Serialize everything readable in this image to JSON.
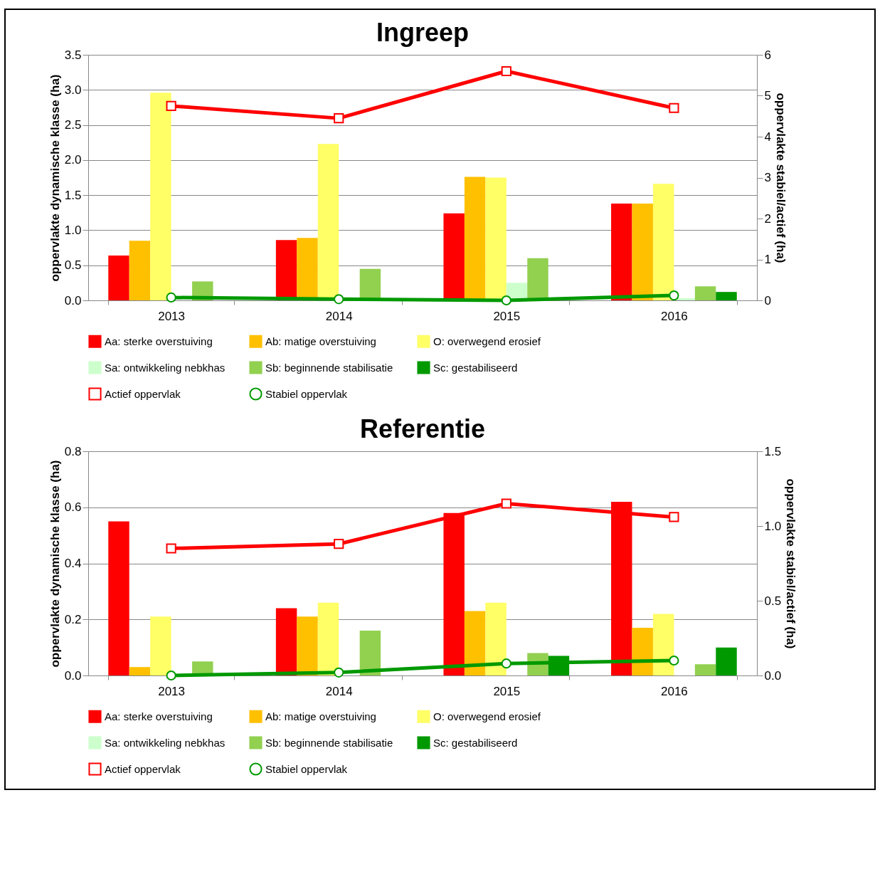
{
  "chart_data": [
    {
      "type": "bar",
      "title": "Ingreep",
      "ylabel": "oppervlakte dynamische klasse (ha)",
      "y2label": "oppervlakte stabiel/actief (ha)",
      "categories": [
        "2013",
        "2014",
        "2015",
        "2016"
      ],
      "ylim": [
        0,
        3.5
      ],
      "yticks": [
        {
          "value": 0,
          "label": "0.0"
        },
        0.5,
        {
          "value": 1,
          "label": "1.0"
        },
        1.5,
        {
          "value": 2,
          "label": "2.0"
        },
        2.5,
        {
          "value": 3,
          "label": "3.0"
        },
        3.5
      ],
      "y2lim": [
        0,
        6
      ],
      "y2ticks": [
        0,
        1,
        2,
        3,
        4,
        5,
        6
      ],
      "grid": "y",
      "legend": "bottom",
      "series": [
        {
          "name": "Aa: sterke overstuiving",
          "color": "#ff0000",
          "values": [
            0.64,
            0.86,
            1.24,
            1.38
          ]
        },
        {
          "name": "Ab: matige overstuiving",
          "color": "#ffc000",
          "values": [
            0.85,
            0.89,
            1.76,
            1.38
          ]
        },
        {
          "name": "O: overwegend erosief",
          "color": "#ffff66",
          "values": [
            2.96,
            2.23,
            1.75,
            1.66
          ]
        },
        {
          "name": "Sa: ontwikkeling nebkhas",
          "color": "#ccffcc",
          "values": [
            0,
            0,
            0.25,
            0.03
          ]
        },
        {
          "name": "Sb: beginnende stabilisatie",
          "color": "#92d050",
          "values": [
            0.27,
            0.45,
            0.6,
            0.2
          ]
        },
        {
          "name": "Sc: gestabiliseerd",
          "color": "#009900",
          "values": [
            0,
            0,
            0,
            0.12
          ]
        },
        {
          "name": "Actief oppervlak",
          "type": "line",
          "axis": "y2",
          "marker": "square",
          "color": "#ff0000",
          "values": [
            4.75,
            4.45,
            5.6,
            4.7
          ]
        },
        {
          "name": "Stabiel oppervlak",
          "type": "line",
          "axis": "y2",
          "marker": "circle",
          "color": "#009900",
          "values": [
            0.07,
            0.03,
            0.0,
            0.12
          ]
        }
      ]
    },
    {
      "type": "bar",
      "title": "Referentie",
      "ylabel": "oppervlakte dynamische klasse (ha)",
      "y2label": "oppervlakte stabiel/actief (ha)",
      "categories": [
        "2013",
        "2014",
        "2015",
        "2016"
      ],
      "ylim": [
        0,
        0.8
      ],
      "yticks": [
        {
          "value": 0,
          "label": "0.0"
        },
        0.2,
        0.4,
        0.6,
        0.8
      ],
      "y2lim": [
        0,
        1.5
      ],
      "y2ticks": [
        {
          "value": 0,
          "label": "0.0"
        },
        0.5,
        {
          "value": 1,
          "label": "1.0"
        },
        1.5
      ],
      "grid": "y",
      "legend": "bottom",
      "series": [
        {
          "name": "Aa: sterke overstuiving",
          "color": "#ff0000",
          "values": [
            0.55,
            0.24,
            0.58,
            0.62
          ]
        },
        {
          "name": "Ab: matige overstuiving",
          "color": "#ffc000",
          "values": [
            0.03,
            0.21,
            0.23,
            0.17
          ]
        },
        {
          "name": "O: overwegend erosief",
          "color": "#ffff66",
          "values": [
            0.21,
            0.26,
            0.26,
            0.22
          ]
        },
        {
          "name": "Sa: ontwikkeling nebkhas",
          "color": "#ccffcc",
          "values": [
            0,
            0,
            0,
            0
          ]
        },
        {
          "name": "Sb: beginnende stabilisatie",
          "color": "#92d050",
          "values": [
            0.05,
            0.16,
            0.08,
            0.04
          ]
        },
        {
          "name": "Sc: gestabiliseerd",
          "color": "#009900",
          "values": [
            0,
            0,
            0.07,
            0.1
          ]
        },
        {
          "name": "Actief oppervlak",
          "type": "line",
          "axis": "y2",
          "marker": "square",
          "color": "#ff0000",
          "values": [
            0.85,
            0.88,
            1.15,
            1.06
          ]
        },
        {
          "name": "Stabiel oppervlak",
          "type": "line",
          "axis": "y2",
          "marker": "circle",
          "color": "#009900",
          "values": [
            0.0,
            0.02,
            0.08,
            0.1
          ]
        }
      ]
    }
  ]
}
